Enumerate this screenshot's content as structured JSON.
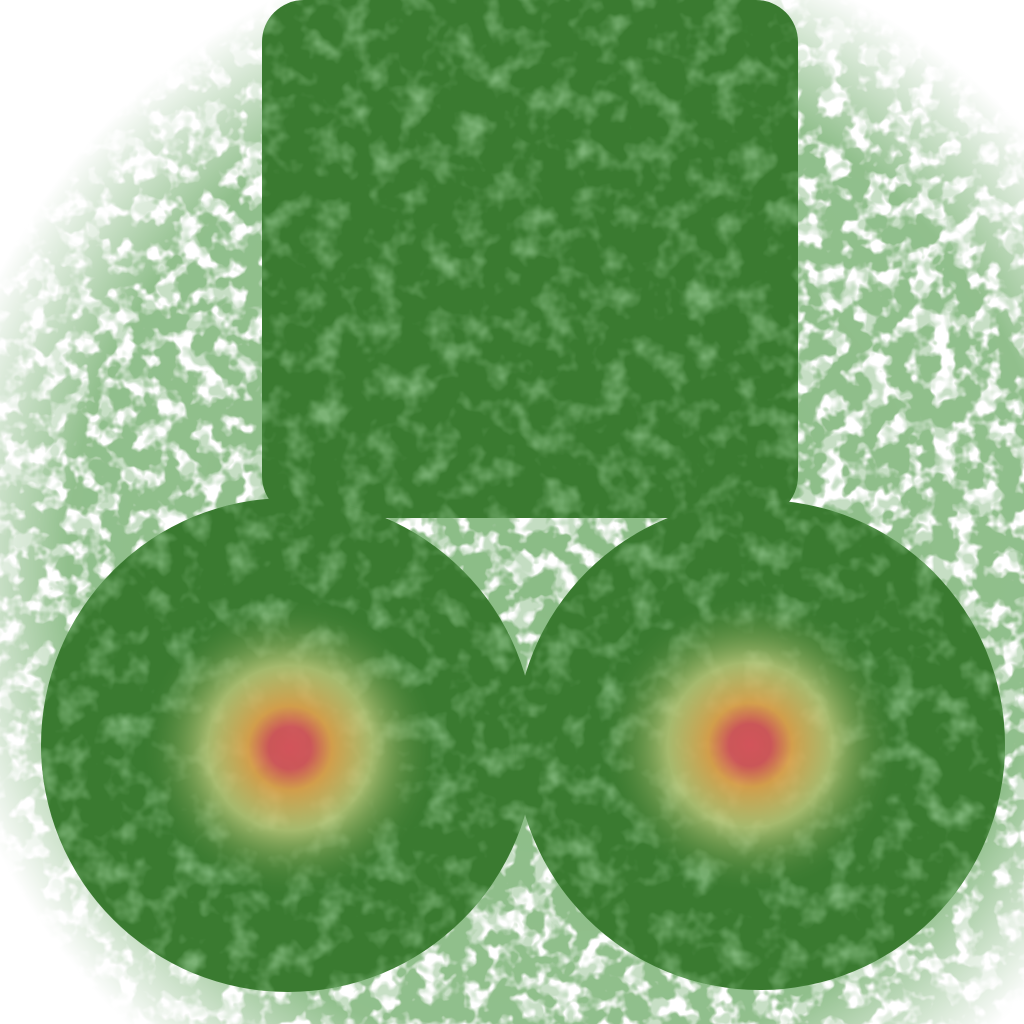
{
  "image": {
    "kind": "texture-artwork",
    "colors": {
      "background": "#ffffff",
      "speckle_light": "#a9c6a6",
      "speckle_mid": "#6f9f69",
      "speckle_dark": "#3e7a36",
      "shape_fill": "#3a7a30",
      "shape_fill_dark": "#2f6b27",
      "glow_inner": "#d2545a",
      "glow_mid": "#e2a24e",
      "glow_outer": "#c9cf82"
    },
    "shapes": [
      {
        "name": "rounded-square",
        "kind": "rounded-rectangle"
      },
      {
        "name": "left-circle",
        "kind": "circle",
        "has_glow": true
      },
      {
        "name": "right-circle",
        "kind": "circle",
        "has_glow": true
      }
    ]
  }
}
